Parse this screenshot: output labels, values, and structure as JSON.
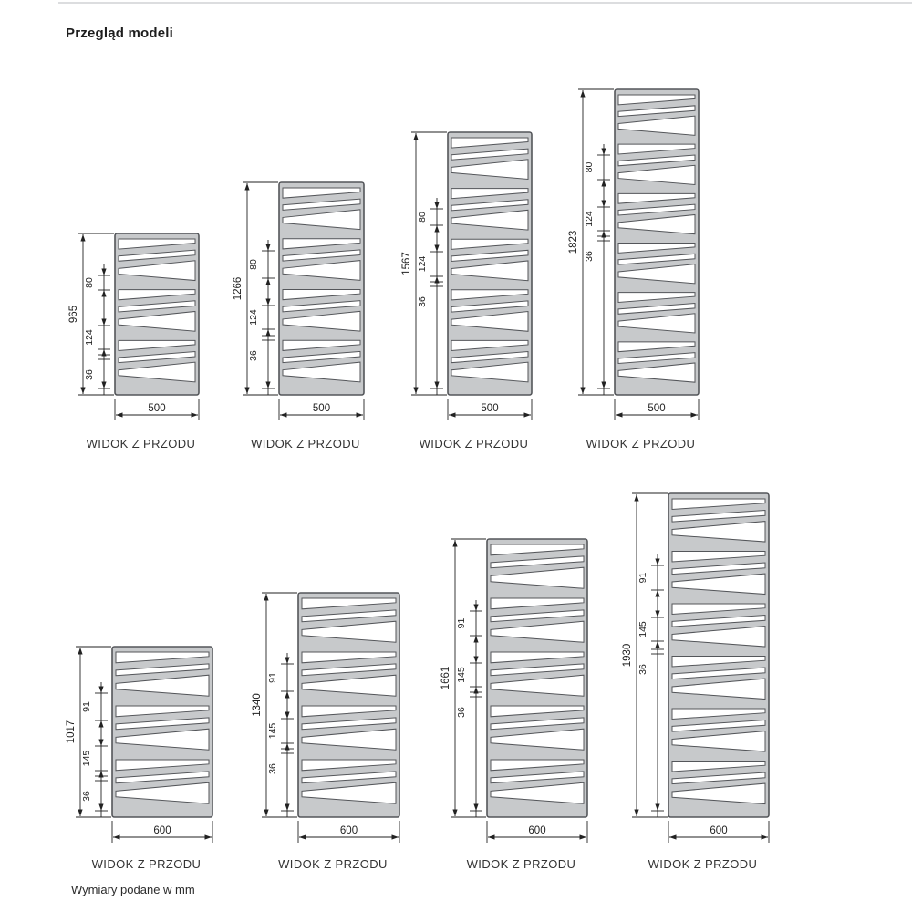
{
  "title": "Przegląd modeli",
  "footer_note": "Wymiary podane w mm",
  "view_label": "WIDOK Z PRZODU",
  "colors": {
    "panel": "#c7c9cb",
    "outline": "#54565a",
    "dim_line": "#222222",
    "text": "#222222",
    "page_border": "#dcdddf",
    "cutout": "#ffffff"
  },
  "radiators": [
    {
      "height": "965",
      "width": "500",
      "dim_top": "80",
      "dim_mid": "124",
      "dim_bottom": "36"
    },
    {
      "height": "1266",
      "width": "500",
      "dim_top": "80",
      "dim_mid": "124",
      "dim_bottom": "36"
    },
    {
      "height": "1567",
      "width": "500",
      "dim_top": "80",
      "dim_mid": "124",
      "dim_bottom": "36"
    },
    {
      "height": "1823",
      "width": "500",
      "dim_top": "80",
      "dim_mid": "124",
      "dim_bottom": "36"
    },
    {
      "height": "1017",
      "width": "600",
      "dim_top": "91",
      "dim_mid": "145",
      "dim_bottom": "36"
    },
    {
      "height": "1340",
      "width": "600",
      "dim_top": "91",
      "dim_mid": "145",
      "dim_bottom": "36"
    },
    {
      "height": "1661",
      "width": "600",
      "dim_top": "91",
      "dim_mid": "145",
      "dim_bottom": "36"
    },
    {
      "height": "1930",
      "width": "600",
      "dim_top": "91",
      "dim_mid": "145",
      "dim_bottom": "36"
    }
  ]
}
